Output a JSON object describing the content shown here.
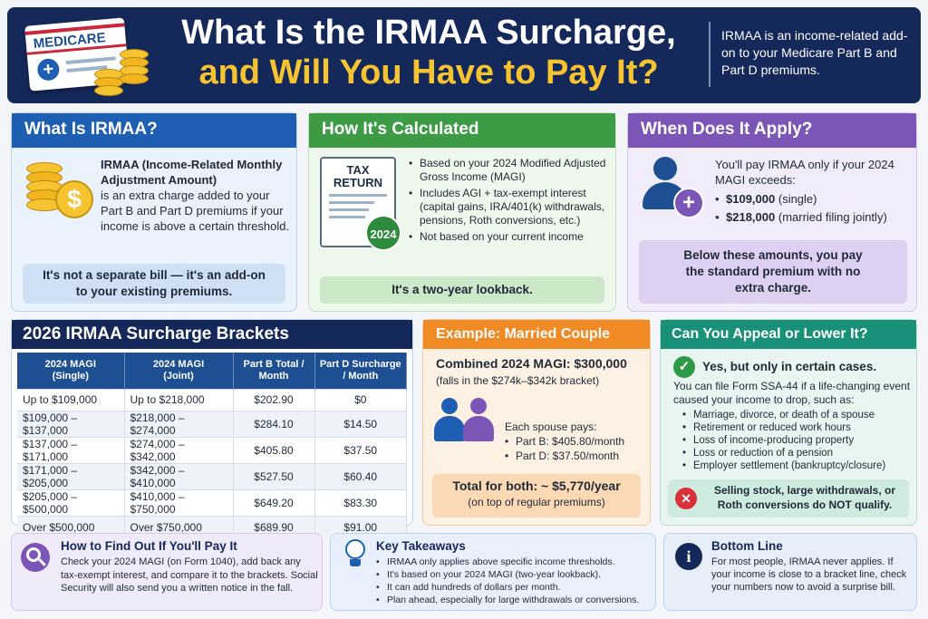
{
  "header": {
    "title_line1": "What Is the IRMAA Surcharge,",
    "title_line2": "and Will You Have to Pay It?",
    "card_text": "MEDICARE",
    "summary": "IRMAA is an income-related add-on to your Medicare Part B and Part D premiums."
  },
  "what": {
    "title": "What Is IRMAA?",
    "term": "IRMAA (Income-Related Monthly Adjustment Amount)",
    "desc": "is an extra charge added to your Part B and Part D premiums if your income is above a certain threshold.",
    "callout": "It's not a separate bill — it's an add-on to your existing premiums."
  },
  "calc": {
    "title": "How It's Calculated",
    "doc_title": "TAX RETURN",
    "doc_year": "2024",
    "bullets": [
      "Based on your 2024 Modified Adjusted Gross Income (MAGI)",
      "Includes AGI + tax-exempt interest (capital gains, IRA/401(k) withdrawals, pensions, Roth conversions, etc.)",
      "Not based on your current income"
    ],
    "callout": "It's a two-year lookback."
  },
  "when": {
    "title": "When Does It Apply?",
    "intro": "You'll pay IRMAA only if your 2024 MAGI exceeds:",
    "thresholds": [
      {
        "amount": "$109,000",
        "label": "(single)"
      },
      {
        "amount": "$218,000",
        "label": "(married filing jointly)"
      }
    ],
    "callout": "Below these amounts, you pay the standard premium with no extra charge."
  },
  "brackets": {
    "title": "2026 IRMAA Surcharge Brackets",
    "headers": [
      "2024 MAGI (Single)",
      "2024 MAGI (Joint)",
      "Part B Total / Month",
      "Part D Surcharge / Month"
    ],
    "rows": [
      [
        "Up to $109,000",
        "Up to $218,000",
        "$202.90",
        "$0"
      ],
      [
        "$109,000 – $137,000",
        "$218,000 – $274,000",
        "$284.10",
        "$14.50"
      ],
      [
        "$137,000 – $171,000",
        "$274,000 – $342,000",
        "$405.80",
        "$37.50"
      ],
      [
        "$171,000 – $205,000",
        "$342,000 – $410,000",
        "$527.50",
        "$60.40"
      ],
      [
        "$205,000 – $500,000",
        "$410,000 – $750,000",
        "$649.20",
        "$83.30"
      ],
      [
        "Over $500,000",
        "Over $750,000",
        "$689.90",
        "$91.00"
      ]
    ]
  },
  "example": {
    "title": "Example: Married Couple",
    "combined": "Combined 2024 MAGI: $300,000",
    "bracket_note": "(falls in the $274k–$342k bracket)",
    "each_pays": "Each spouse pays:",
    "part_b": "Part B: $405.80/month",
    "part_d": "Part D: $37.50/month",
    "total": "Total for both: ~ $5,770/year",
    "total_note": "(on top of regular premiums)"
  },
  "appeal": {
    "title": "Can You Appeal or Lower It?",
    "yes": "Yes, but only in certain cases.",
    "intro": "You can file Form SSA-44 if a life-changing event caused your income to drop, such as:",
    "events": [
      "Marriage, divorce, or death of a spouse",
      "Retirement or reduced work hours",
      "Loss of income-producing property",
      "Loss or reduction of a pension",
      "Employer settlement (bankruptcy/closure)"
    ],
    "no": "Selling stock, large withdrawals, or Roth conversions do NOT qualify."
  },
  "find": {
    "title": "How to Find Out If You'll Pay It",
    "text": "Check your 2024 MAGI (on Form 1040), add back any tax-exempt interest, and compare it to the brackets. Social Security will also send you a written notice in the fall."
  },
  "takeaways": {
    "title": "Key Takeaways",
    "items": [
      "IRMAA only applies above specific income thresholds.",
      "It's based on your 2024 MAGI (two-year lookback).",
      "It can add hundreds of dollars per month.",
      "Plan ahead, especially for large withdrawals or conversions."
    ]
  },
  "bottom": {
    "title": "Bottom Line",
    "text": "For most people, IRMAA never applies. If your income is close to a bracket line, check your numbers now to avoid a surprise bill."
  },
  "colors": {
    "navy": "#14285a",
    "blue": "#1e5fb4",
    "green": "#3d9a45",
    "purple": "#7b56b6",
    "orange": "#f08a24",
    "teal": "#199078",
    "gold": "#f7c431"
  }
}
